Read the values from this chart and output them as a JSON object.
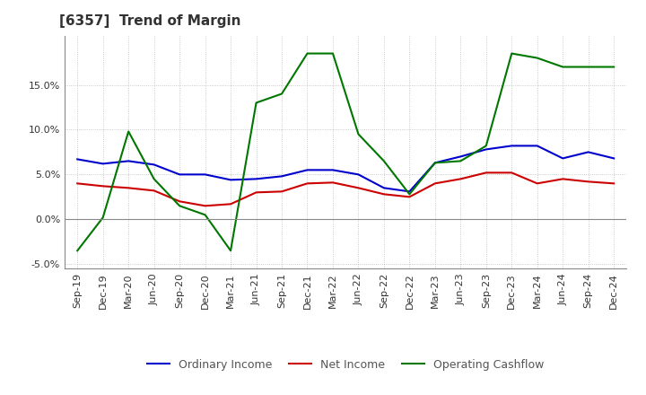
{
  "title": "[6357]  Trend of Margin",
  "x_labels": [
    "Sep-19",
    "Dec-19",
    "Mar-20",
    "Jun-20",
    "Sep-20",
    "Dec-20",
    "Mar-21",
    "Jun-21",
    "Sep-21",
    "Dec-21",
    "Mar-22",
    "Jun-22",
    "Sep-22",
    "Dec-22",
    "Mar-23",
    "Jun-23",
    "Sep-23",
    "Dec-23",
    "Mar-24",
    "Jun-24",
    "Sep-24",
    "Dec-24"
  ],
  "ordinary_income": [
    6.7,
    6.2,
    6.5,
    6.1,
    5.0,
    5.0,
    4.4,
    4.5,
    4.8,
    5.5,
    5.5,
    5.0,
    3.5,
    3.1,
    6.3,
    7.0,
    7.8,
    8.2,
    8.2,
    6.8,
    7.5,
    6.8
  ],
  "net_income": [
    4.0,
    3.7,
    3.5,
    3.2,
    2.0,
    1.5,
    1.7,
    3.0,
    3.1,
    4.0,
    4.1,
    3.5,
    2.8,
    2.5,
    4.0,
    4.5,
    5.2,
    5.2,
    4.0,
    4.5,
    4.2,
    4.0
  ],
  "operating_cashflow": [
    -3.5,
    0.2,
    9.8,
    4.5,
    1.5,
    0.5,
    -3.5,
    13.0,
    14.0,
    18.5,
    18.5,
    9.5,
    6.5,
    2.8,
    6.3,
    6.5,
    8.2,
    18.5,
    18.0,
    17.0,
    17.0,
    17.0
  ],
  "ylim": [
    -5.5,
    20.5
  ],
  "yticks": [
    -5.0,
    0.0,
    5.0,
    10.0,
    15.0
  ],
  "line_colors": {
    "ordinary_income": "#0000cc",
    "net_income": "#cc0000",
    "operating_cashflow": "#007700"
  },
  "legend_labels": [
    "Ordinary Income",
    "Net Income",
    "Operating Cashflow"
  ],
  "legend_text_color": "#555555",
  "background_color": "#ffffff",
  "grid_color": "#aaaaaa",
  "title_color": "#333333",
  "title_fontsize": 11,
  "axis_fontsize": 8,
  "legend_fontsize": 9
}
